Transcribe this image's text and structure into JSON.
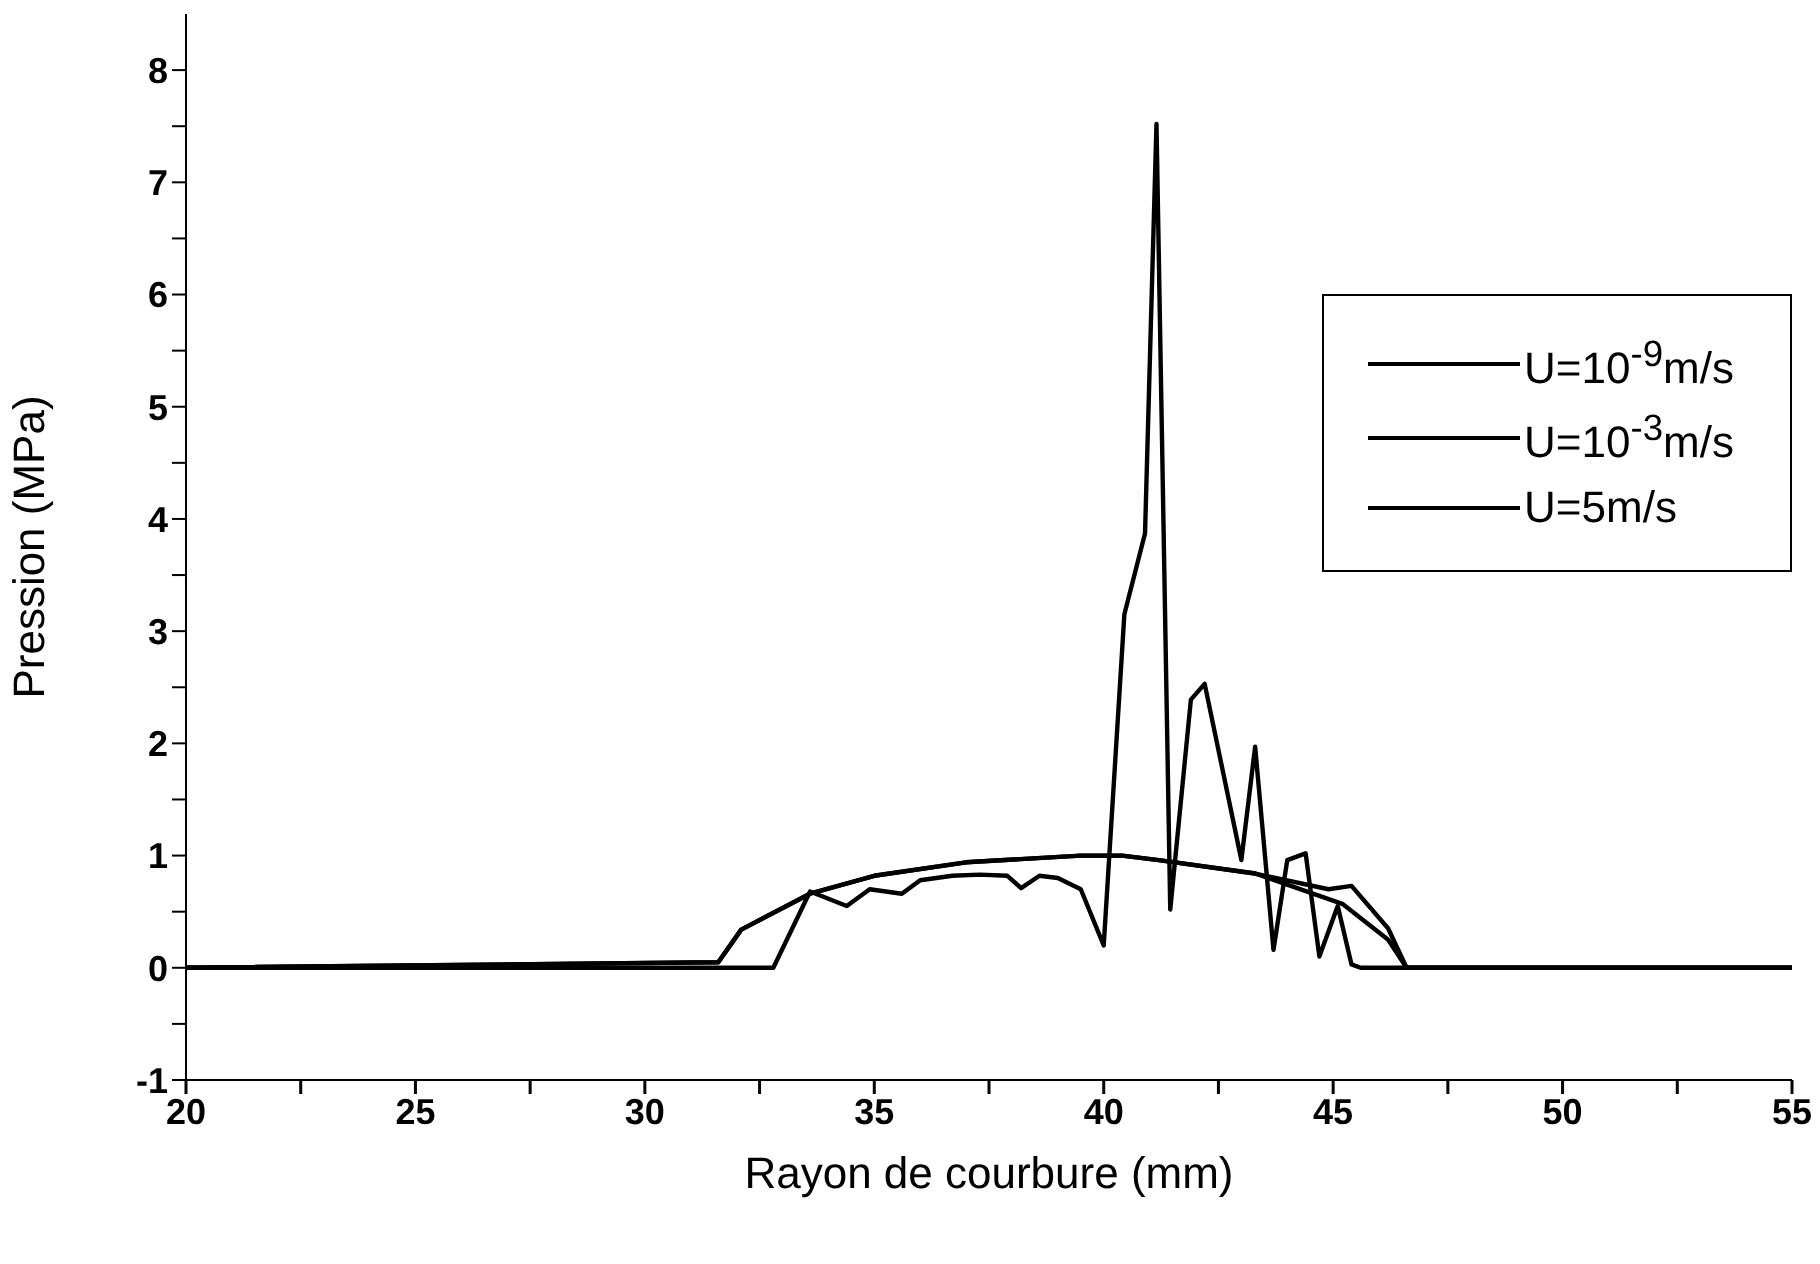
{
  "chart_data": {
    "type": "line",
    "xlabel": "Rayon de courbure (mm)",
    "ylabel": "Pression (MPa)",
    "xlim": [
      20,
      55
    ],
    "xticks": [
      20,
      {
        "value": 22.5,
        "label": null
      },
      25,
      {
        "value": 27.5,
        "label": null
      },
      30,
      {
        "value": 32.5,
        "label": null
      },
      35,
      {
        "value": 37.5,
        "label": null
      },
      40,
      {
        "value": 42.5,
        "label": null
      },
      45,
      {
        "value": 47.5,
        "label": null
      },
      50,
      {
        "value": 52.5,
        "label": null
      },
      55
    ],
    "ylim": [
      -1,
      8.5
    ],
    "yticks": [
      -1,
      {
        "value": -0.5,
        "label": null
      },
      0,
      {
        "value": 0.5,
        "label": null
      },
      1,
      {
        "value": 1.5,
        "label": null
      },
      2,
      {
        "value": 2.5,
        "label": null
      },
      3,
      {
        "value": 3.5,
        "label": null
      },
      4,
      {
        "value": 4.5,
        "label": null
      },
      5,
      {
        "value": 5.5,
        "label": null
      },
      6,
      {
        "value": 6.5,
        "label": null
      },
      7,
      {
        "value": 7.5,
        "label": null
      },
      8
    ],
    "grid": false,
    "legend": "top right",
    "marker": "none",
    "line_style": "solid",
    "series": [
      {
        "name": "U=10$^{-9}$m/s",
        "color": "#000000",
        "x": [
          20,
          31.6,
          32.1,
          33.6,
          35,
          37,
          39.5,
          40.4,
          41.2,
          43.3,
          45.2,
          46.2,
          46.6,
          55
        ],
        "values": [
          0,
          0.05,
          0.34,
          0.66,
          0.82,
          0.94,
          1.0,
          1.0,
          0.96,
          0.84,
          0.57,
          0.25,
          0,
          0
        ]
      },
      {
        "name": "U=10$^{-3}$m/s",
        "color": "#000000",
        "x": [
          20,
          31.6,
          32.1,
          33.6,
          35,
          37,
          39.5,
          40.4,
          41.2,
          43.3,
          44.9,
          45.4,
          46.2,
          46.6,
          55
        ],
        "values": [
          0,
          0.05,
          0.34,
          0.66,
          0.82,
          0.94,
          1.0,
          1.0,
          0.96,
          0.84,
          0.7,
          0.73,
          0.35,
          0,
          0
        ]
      },
      {
        "name": "U=5m/s",
        "color": "#000000",
        "x": [
          20,
          32.8,
          33.6,
          34.4,
          34.9,
          35.6,
          36.0,
          36.7,
          37.3,
          37.9,
          38.2,
          38.6,
          39.0,
          39.5,
          40.0,
          40.45,
          40.9,
          41.15,
          41.45,
          41.9,
          42.2,
          43.0,
          43.3,
          43.7,
          44.0,
          44.4,
          44.7,
          45.1,
          45.4,
          45.6,
          55
        ],
        "values": [
          0,
          0,
          0.68,
          0.55,
          0.7,
          0.66,
          0.78,
          0.82,
          0.83,
          0.82,
          0.71,
          0.82,
          0.8,
          0.7,
          0.2,
          3.15,
          3.87,
          7.52,
          0.52,
          2.39,
          2.53,
          0.96,
          1.97,
          0.16,
          0.96,
          1.02,
          0.1,
          0.55,
          0.03,
          0,
          0
        ]
      }
    ]
  }
}
